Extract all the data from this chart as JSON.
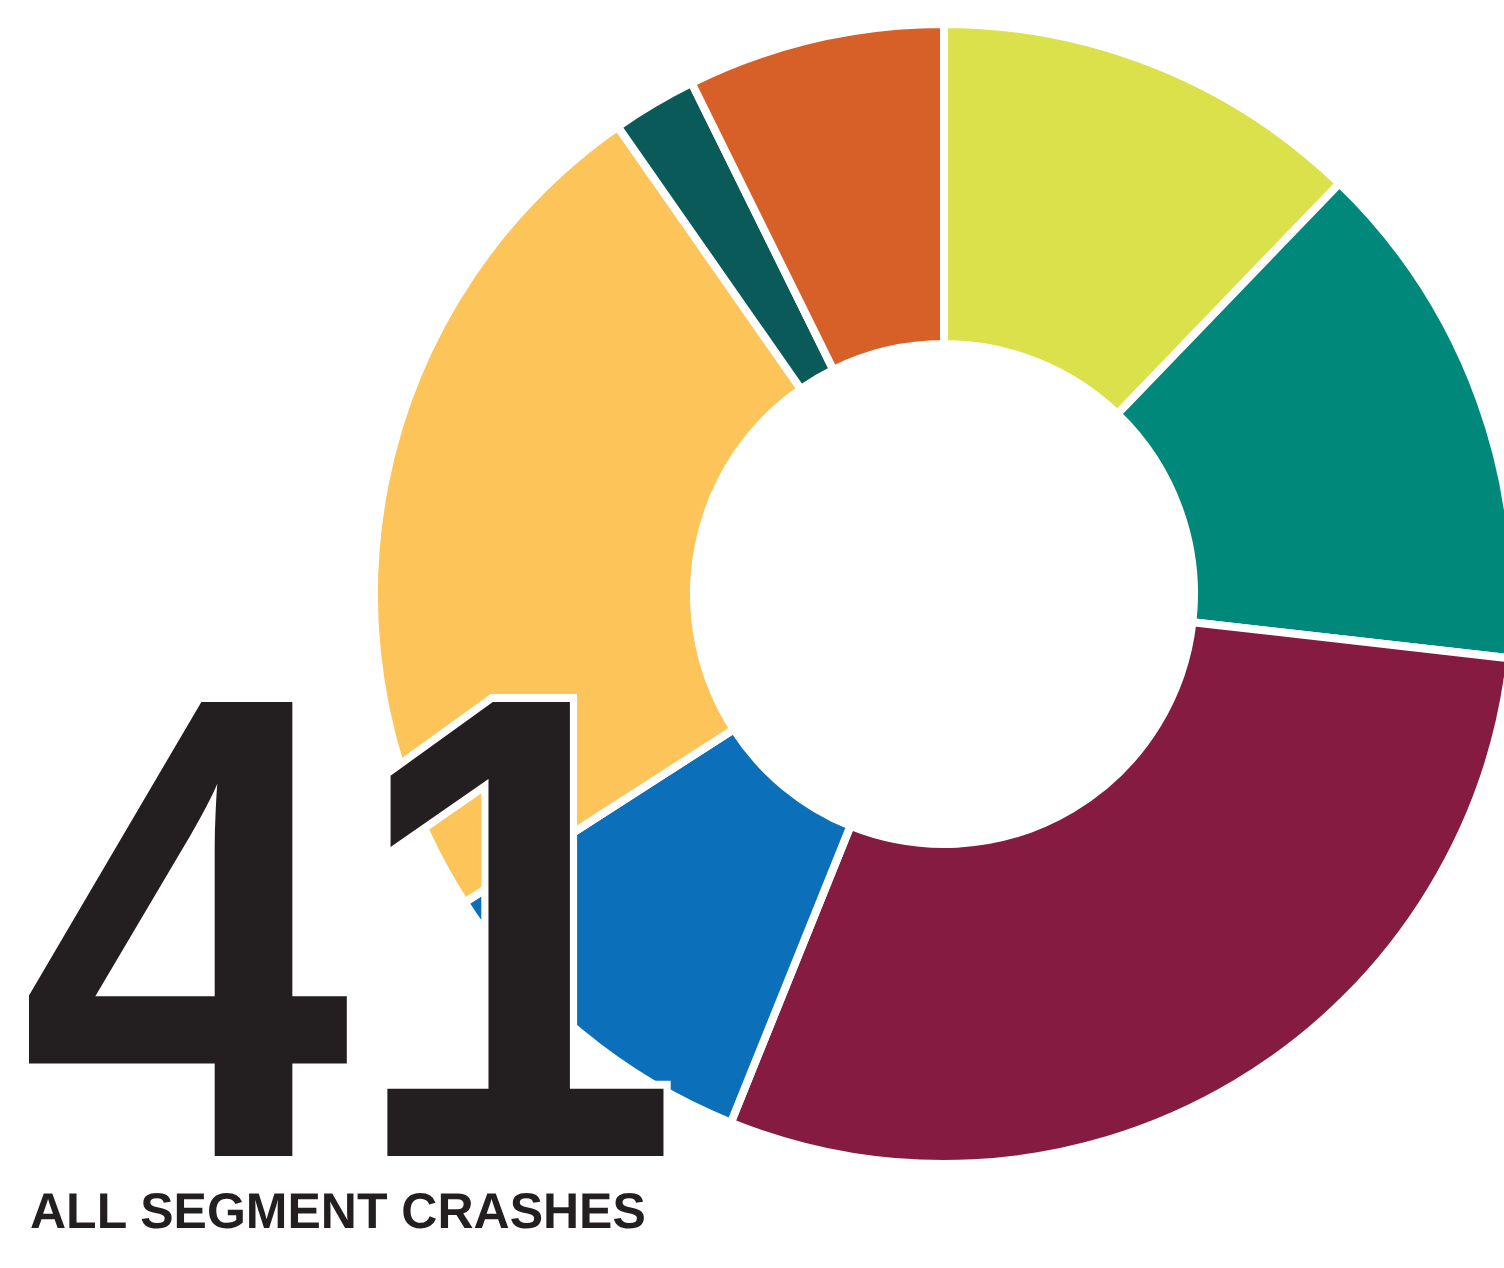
{
  "chart_data": {
    "type": "donut",
    "title": "41",
    "subtitle": "ALL SEGMENT CRASHES",
    "categories": [
      null,
      null,
      null,
      null,
      null,
      null,
      null
    ],
    "values": [
      12.2,
      14.6,
      29.3,
      9.8,
      24.4,
      2.4,
      7.3
    ],
    "colors": [
      "#dbe14a",
      "#00887a",
      "#861b41",
      "#0b6fba",
      "#fdc45a",
      "#0a5a5a",
      "#d66027"
    ],
    "legend": false
  }
}
